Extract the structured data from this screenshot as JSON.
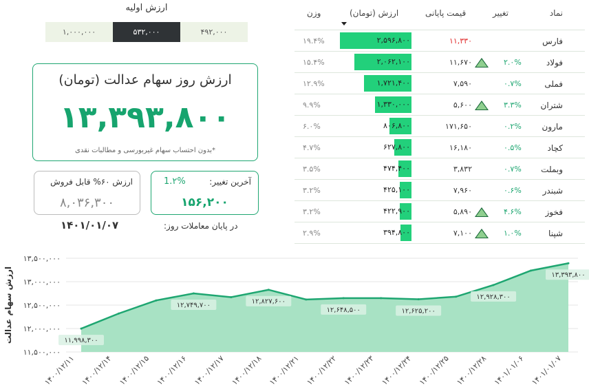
{
  "initial_value": {
    "title": "ارزش اولیه",
    "options": [
      "۱,۰۰۰,۰۰۰",
      "۵۳۲,۰۰۰",
      "۴۹۲,۰۰۰"
    ],
    "selected_index": 1
  },
  "main_card": {
    "title": "ارزش روز سهام عدالت (تومان)",
    "value": "۱۳,۳۹۳,۸۰۰",
    "note": "*بدون احتساب سهام غیربورسی و مطالبات نقدی"
  },
  "sellable_card": {
    "label": "ارزش ۶۰% قابل فروش",
    "value": "۸,۰۳۶,۳۰۰"
  },
  "change_card": {
    "label": "آخرین تغییر:",
    "percent": "1.۲%",
    "value": "۱۵۶,۲۰۰"
  },
  "date": "۱۴۰۱/۰۱/۰۷",
  "end_of_trading_label": "در پایان معاملات روز:",
  "table": {
    "headers": {
      "symbol": "نماد",
      "change": "تغییر",
      "final_price": "قیمت پایانی",
      "value": "ارزش (تومان)",
      "weight": "وزن"
    },
    "rows": [
      {
        "symbol": "فارس",
        "change": "",
        "up": false,
        "price": "۱۱,۳۳۰",
        "price_red": true,
        "value": "۲,۵۹۶,۸۰۰",
        "value_frac": 1.0,
        "weight": "۱۹.۴%"
      },
      {
        "symbol": "فولاد",
        "change": "۲.۰%",
        "up": true,
        "price": "۱۱,۶۷۰",
        "price_red": false,
        "value": "۲,۰۶۲,۱۰۰",
        "value_frac": 0.794,
        "weight": "۱۵.۴%"
      },
      {
        "symbol": "فملی",
        "change": "۰.۷%",
        "up": false,
        "price": "۷,۵۹۰",
        "price_red": false,
        "value": "۱,۷۲۱,۴۰۰",
        "value_frac": 0.663,
        "weight": "۱۲.۹%"
      },
      {
        "symbol": "شتران",
        "change": "۳.۳%",
        "up": true,
        "price": "۵,۶۰۰",
        "price_red": false,
        "value": "۱,۳۳۰,۰۰۰",
        "value_frac": 0.512,
        "weight": "۹.۹%"
      },
      {
        "symbol": "مارون",
        "change": "۰.۲%",
        "up": false,
        "price": "۱۷۱,۶۵۰",
        "price_red": false,
        "value": "۸۰۶,۸۰۰",
        "value_frac": 0.311,
        "weight": "۶.۰%"
      },
      {
        "symbol": "کچاد",
        "change": "۰.۵%",
        "up": false,
        "price": "۱۶,۱۸۰",
        "price_red": false,
        "value": "۶۲۷,۸۰۰",
        "value_frac": 0.242,
        "weight": "۴.۷%"
      },
      {
        "symbol": "وبملت",
        "change": "۰.۷%",
        "up": false,
        "price": "۳,۸۳۲",
        "price_red": false,
        "value": "۴۷۴,۴۰۰",
        "value_frac": 0.183,
        "weight": "۳.۵%"
      },
      {
        "symbol": "شبندر",
        "change": "۰.۶%",
        "up": false,
        "price": "۷,۹۶۰",
        "price_red": false,
        "value": "۴۲۵,۱۰۰",
        "value_frac": 0.164,
        "weight": "۳.۲%"
      },
      {
        "symbol": "فخوز",
        "change": "۴.۶%",
        "up": true,
        "price": "۵,۸۹۰",
        "price_red": false,
        "value": "۴۲۲,۹۰۰",
        "value_frac": 0.163,
        "weight": "۳.۲%"
      },
      {
        "symbol": "شپنا",
        "change": "۱.۰%",
        "up": true,
        "price": "۷,۱۰۰",
        "price_red": false,
        "value": "۳۹۴,۸۰۰",
        "value_frac": 0.152,
        "weight": "۲.۹%"
      }
    ]
  },
  "chart_data": {
    "type": "area",
    "ylabel": "ارزش سهام عدالت",
    "ylim": [
      11500000,
      13500000
    ],
    "ytick_labels": [
      "۱۱,۵۰۰,۰۰۰",
      "۱۲,۰۰۰,۰۰۰",
      "۱۲,۵۰۰,۰۰۰",
      "۱۳,۰۰۰,۰۰۰",
      "۱۳,۵۰۰,۰۰۰"
    ],
    "ytick_values": [
      11500000,
      12000000,
      12500000,
      13000000,
      13500000
    ],
    "x": [
      "۱۴۰۰/۱۲/۱۱",
      "۱۴۰۰/۱۲/۱۴",
      "۱۴۰۰/۱۲/۱۵",
      "۱۴۰۰/۱۲/۱۶",
      "۱۴۰۰/۱۲/۱۷",
      "۱۴۰۰/۱۲/۱۸",
      "۱۴۰۰/۱۲/۲۱",
      "۱۴۰۰/۱۲/۲۲",
      "۱۴۰۰/۱۲/۲۳",
      "۱۴۰۰/۱۲/۲۴",
      "۱۴۰۰/۱۲/۲۵",
      "۱۴۰۰/۱۲/۲۸",
      "۱۴۰۱/۰۱/۰۶",
      "۱۴۰۱/۰۱/۰۷"
    ],
    "values": [
      11998300,
      12320000,
      12600000,
      12749700,
      12670000,
      12827600,
      12620000,
      12648500,
      12648000,
      12625200,
      12680000,
      12928300,
      13237600,
      13393800
    ],
    "data_labels": [
      {
        "index": 0,
        "text": "۱۱,۹۹۸,۳۰۰"
      },
      {
        "index": 3,
        "text": "۱۲,۷۴۹,۷۰۰"
      },
      {
        "index": 5,
        "text": "۱۲,۸۲۷,۶۰۰"
      },
      {
        "index": 7,
        "text": "۱۲,۶۴۸,۵۰۰"
      },
      {
        "index": 9,
        "text": "۱۲,۶۲۵,۲۰۰"
      },
      {
        "index": 11,
        "text": "۱۲,۹۲۸,۳۰۰"
      },
      {
        "index": 13,
        "text": "۱۳,۳۹۳,۸۰۰"
      }
    ],
    "line_color": "#1ea671",
    "fill_color": "#a8e2c4",
    "grid": true
  },
  "colors": {
    "accent": "#1ea671",
    "bar": "#22d07b",
    "negative": "#e02a2a",
    "selected_segment": "#2f3336"
  }
}
